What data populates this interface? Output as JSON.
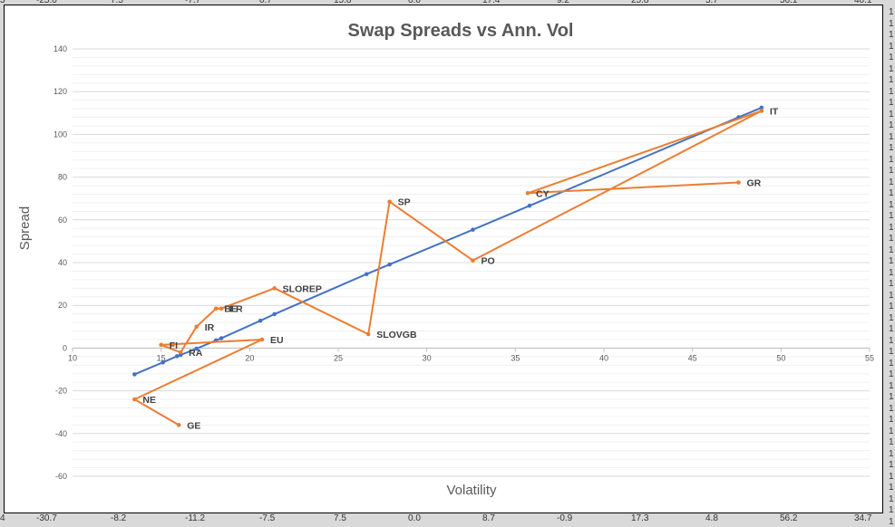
{
  "background_numbers": {
    "top": [
      "-25.0",
      "7.5",
      "-7.7",
      "0.7",
      "15.8",
      "0.0",
      "17.4",
      "9.2",
      "25.8",
      "5.7",
      "56.1",
      "40.1"
    ],
    "bottom": [
      "-30.7",
      "-8.2",
      "-11.2",
      "-7.5",
      "7.5",
      "0.0",
      "8.7",
      "-0.9",
      "17.3",
      "4.8",
      "56.2",
      "34.7"
    ],
    "right": [
      "1",
      "1",
      "1",
      "1",
      "1",
      "1",
      "1",
      "1",
      "1",
      "1",
      "1",
      "1",
      "1",
      "1",
      "1",
      "1",
      "1",
      "1",
      "1",
      "1",
      "1",
      "1",
      "1",
      "1",
      "1",
      "1",
      "1",
      "1",
      "1",
      "1",
      "1",
      "1",
      "1",
      "1",
      "1",
      "1",
      "1",
      "1",
      "1",
      "1",
      "1",
      "1",
      "1",
      "1",
      "1",
      "1"
    ],
    "left": [
      "3",
      "4"
    ]
  },
  "chart_data": {
    "type": "line",
    "title": "Swap Spreads vs Ann. Vol",
    "xlabel": "Volatility",
    "ylabel": "Spread",
    "xlim": [
      10,
      55
    ],
    "ylim": [
      -60,
      140
    ],
    "x_ticks": [
      10,
      15,
      20,
      25,
      30,
      35,
      40,
      45,
      50,
      55
    ],
    "y_ticks": [
      -60,
      -40,
      -20,
      0,
      20,
      40,
      60,
      80,
      100,
      120,
      140
    ],
    "grid": "horizontal",
    "colors": {
      "fit": "#4472c4",
      "data": "#ed7d31",
      "grid": "#d9d9d9",
      "axis": "#bfbfbf"
    },
    "series": [
      {
        "role": "fit",
        "points": [
          [
            13.5,
            -12.3
          ],
          [
            15.1,
            -6.7
          ],
          [
            15.9,
            -3.8
          ],
          [
            16.1,
            -3.2
          ],
          [
            17.0,
            -0.3
          ],
          [
            18.1,
            3.6
          ],
          [
            18.4,
            4.6
          ],
          [
            20.6,
            12.8
          ],
          [
            21.4,
            15.9
          ],
          [
            26.6,
            34.6
          ],
          [
            27.9,
            39.1
          ],
          [
            32.6,
            55.4
          ],
          [
            35.8,
            66.6
          ],
          [
            47.6,
            108.0
          ],
          [
            48.9,
            112.5
          ]
        ]
      },
      {
        "role": "data",
        "points": [
          {
            "x": 16.0,
            "y": -36.0,
            "label": "GE"
          },
          {
            "x": 13.5,
            "y": -24.0,
            "label": "NE"
          },
          {
            "x": 20.7,
            "y": 4.0,
            "label": "EU"
          },
          {
            "x": 15.0,
            "y": 1.5,
            "label": "FI"
          },
          {
            "x": 16.1,
            "y": -2.0,
            "label": "RA"
          },
          {
            "x": 17.0,
            "y": 10.0,
            "label": "IR"
          },
          {
            "x": 18.1,
            "y": 18.5,
            "label": "BE"
          },
          {
            "x": 18.4,
            "y": 18.5,
            "label": "ER"
          },
          {
            "x": 21.4,
            "y": 28.0,
            "label": "SLOREP"
          },
          {
            "x": 26.7,
            "y": 6.5,
            "label": "SLOVGB"
          },
          {
            "x": 27.9,
            "y": 68.5,
            "label": "SP"
          },
          {
            "x": 32.6,
            "y": 41.0,
            "label": "PO"
          },
          {
            "x": 48.9,
            "y": 111.0,
            "label": "IT"
          },
          {
            "x": 35.7,
            "y": 72.5,
            "label": "CY"
          },
          {
            "x": 47.6,
            "y": 77.5,
            "label": "GR"
          }
        ]
      }
    ]
  }
}
